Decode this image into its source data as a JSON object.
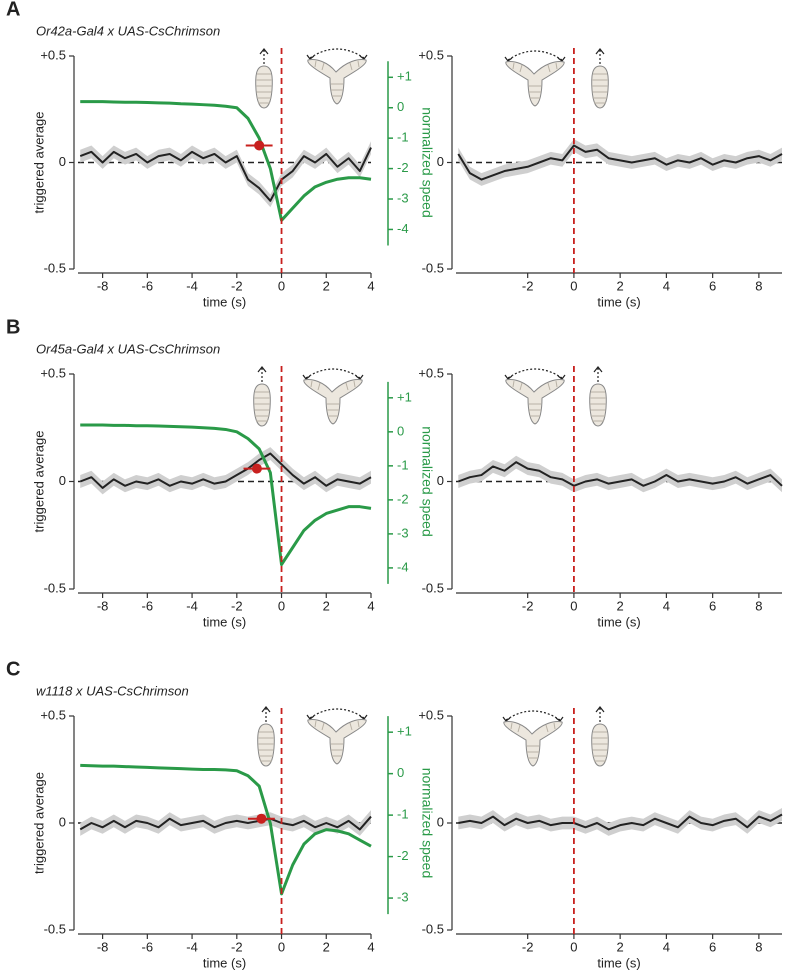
{
  "chart_data": [
    {
      "type": "line",
      "label": "A",
      "title": "Or42a-Gal4 x UAS-CsChrimson",
      "x_label": "time (s)",
      "y_label": "triggered average",
      "y2_label": "normalized speed",
      "x": [
        -9,
        -8.5,
        -8,
        -7.5,
        -7,
        -6.5,
        -6,
        -5.5,
        -5,
        -4.5,
        -4,
        -3.5,
        -3,
        -2.5,
        -2,
        -1.5,
        -1,
        -0.5,
        0,
        0.5,
        1,
        1.5,
        2,
        2.5,
        3,
        3.5,
        4
      ],
      "series": [
        {
          "color": "#222222",
          "sem": 0.03,
          "values": [
            0.03,
            0.05,
            0.0,
            0.05,
            0.02,
            0.04,
            0.0,
            0.03,
            0.04,
            0.01,
            0.05,
            0.02,
            0.04,
            0.0,
            0.03,
            -0.08,
            -0.12,
            -0.18,
            -0.08,
            -0.04,
            0.03,
            0.0,
            0.04,
            -0.02,
            0.02,
            -0.04,
            0.07
          ]
        },
        {
          "color": "#2a9a48",
          "axis": "y2",
          "values": [
            0.2,
            0.2,
            0.2,
            0.19,
            0.18,
            0.18,
            0.17,
            0.16,
            0.15,
            0.13,
            0.12,
            0.1,
            0.08,
            0.05,
            0.0,
            -0.35,
            -1.0,
            -2.0,
            -3.7,
            -3.3,
            -2.9,
            -2.6,
            -2.45,
            -2.35,
            -2.3,
            -2.3,
            -2.35
          ]
        }
      ],
      "onset": {
        "x": -1.0,
        "y": 0.08,
        "xerr": 0.6,
        "color": "#c8201e"
      },
      "event_line": {
        "x": 0,
        "color": "#c8201e"
      },
      "hline": 0,
      "xlim": [
        -9.1,
        4
      ],
      "xticks": [
        -8,
        -6,
        -4,
        -2,
        0,
        2,
        4
      ],
      "ylim": [
        -0.5,
        0.5
      ],
      "yticks": [
        {
          "value": -0.5,
          "label": "-0.5"
        },
        0,
        {
          "value": 0.5,
          "label": "+0.5"
        }
      ],
      "y2lim": [
        -5.3,
        1.7
      ],
      "y2ticks": [
        {
          "value": 1,
          "label": "+1"
        },
        0,
        -1,
        -2,
        -3,
        -4
      ]
    },
    {
      "type": "line",
      "x_label": "time (s)",
      "x": [
        -5,
        -4.5,
        -4,
        -3.5,
        -3,
        -2.5,
        -2,
        -1.5,
        -1,
        -0.5,
        0,
        0.5,
        1,
        1.5,
        2,
        2.5,
        3,
        3.5,
        4,
        4.5,
        5,
        5.5,
        6,
        6.5,
        7,
        7.5,
        8,
        8.5,
        9
      ],
      "series": [
        {
          "color": "#222222",
          "sem": 0.03,
          "values": [
            0.04,
            -0.05,
            -0.08,
            -0.06,
            -0.04,
            -0.03,
            -0.02,
            0.0,
            0.02,
            0.01,
            0.08,
            0.05,
            0.06,
            0.02,
            0.01,
            0.0,
            0.01,
            0.02,
            -0.01,
            0.01,
            0.0,
            0.02,
            -0.01,
            0.01,
            0.0,
            0.02,
            0.03,
            0.01,
            0.04
          ]
        }
      ],
      "event_line": {
        "x": 0,
        "color": "#c8201e"
      },
      "hline": 0,
      "xlim": [
        -5.1,
        9
      ],
      "xticks": [
        -2,
        0,
        2,
        4,
        6,
        8
      ],
      "ylim": [
        -0.5,
        0.5
      ],
      "yticks": [
        {
          "value": -0.5,
          "label": "-0.5"
        },
        0,
        {
          "value": 0.5,
          "label": "+0.5"
        }
      ]
    },
    {
      "type": "line",
      "label": "B",
      "title": "Or45a-Gal4 x UAS-CsChrimson",
      "x_label": "time (s)",
      "y_label": "triggered average",
      "y2_label": "normalized speed",
      "x": [
        -9,
        -8.5,
        -8,
        -7.5,
        -7,
        -6.5,
        -6,
        -5.5,
        -5,
        -4.5,
        -4,
        -3.5,
        -3,
        -2.5,
        -2,
        -1.5,
        -1,
        -0.5,
        0,
        0.5,
        1,
        1.5,
        2,
        2.5,
        3,
        3.5,
        4
      ],
      "series": [
        {
          "color": "#222222",
          "sem": 0.03,
          "values": [
            0.0,
            0.02,
            -0.03,
            0.01,
            -0.02,
            0.0,
            -0.01,
            0.01,
            -0.02,
            0.0,
            -0.01,
            0.01,
            -0.01,
            0.0,
            0.03,
            0.06,
            0.1,
            0.13,
            0.08,
            0.03,
            -0.01,
            0.02,
            -0.02,
            0.01,
            0.0,
            -0.01,
            0.02
          ]
        },
        {
          "color": "#2a9a48",
          "axis": "y2",
          "values": [
            0.2,
            0.2,
            0.2,
            0.19,
            0.19,
            0.18,
            0.18,
            0.17,
            0.16,
            0.15,
            0.14,
            0.12,
            0.1,
            0.07,
            0.0,
            -0.2,
            -0.5,
            -1.2,
            -3.9,
            -3.4,
            -2.9,
            -2.6,
            -2.4,
            -2.3,
            -2.2,
            -2.2,
            -2.25
          ]
        }
      ],
      "onset": {
        "x": -1.1,
        "y": 0.06,
        "xerr": 0.6,
        "color": "#c8201e"
      },
      "event_line": {
        "x": 0,
        "color": "#c8201e"
      },
      "hline": 0,
      "xlim": [
        -9.1,
        4
      ],
      "xticks": [
        -8,
        -6,
        -4,
        -2,
        0,
        2,
        4
      ],
      "ylim": [
        -0.5,
        0.5
      ],
      "yticks": [
        {
          "value": -0.5,
          "label": "-0.5"
        },
        0,
        {
          "value": 0.5,
          "label": "+0.5"
        }
      ],
      "y2lim": [
        -4.62,
        1.7
      ],
      "y2ticks": [
        {
          "value": 1,
          "label": "+1"
        },
        0,
        -1,
        -2,
        -3,
        -4
      ]
    },
    {
      "type": "line",
      "x_label": "time (s)",
      "x": [
        -5,
        -4.5,
        -4,
        -3.5,
        -3,
        -2.5,
        -2,
        -1.5,
        -1,
        -0.5,
        0,
        0.5,
        1,
        1.5,
        2,
        2.5,
        3,
        3.5,
        4,
        4.5,
        5,
        5.5,
        6,
        6.5,
        7,
        7.5,
        8,
        8.5,
        9
      ],
      "series": [
        {
          "color": "#222222",
          "sem": 0.03,
          "values": [
            0.0,
            0.02,
            0.03,
            0.07,
            0.05,
            0.09,
            0.06,
            0.05,
            0.02,
            0.01,
            -0.02,
            0.0,
            0.01,
            -0.01,
            0.0,
            0.01,
            -0.02,
            0.0,
            0.03,
            0.0,
            0.01,
            0.0,
            -0.01,
            0.0,
            0.02,
            -0.01,
            0.01,
            0.03,
            -0.02
          ]
        }
      ],
      "event_line": {
        "x": 0,
        "color": "#c8201e"
      },
      "hline": 0,
      "xlim": [
        -5.1,
        9
      ],
      "xticks": [
        -2,
        0,
        2,
        4,
        6,
        8
      ],
      "ylim": [
        -0.5,
        0.5
      ],
      "yticks": [
        {
          "value": -0.5,
          "label": "-0.5"
        },
        0,
        {
          "value": 0.5,
          "label": "+0.5"
        }
      ]
    },
    {
      "type": "line",
      "label": "C",
      "title": "w1118 x UAS-CsChrimson",
      "x_label": "time (s)",
      "y_label": "triggered average",
      "y2_label": "normalized speed",
      "x": [
        -9,
        -8.5,
        -8,
        -7.5,
        -7,
        -6.5,
        -6,
        -5.5,
        -5,
        -4.5,
        -4,
        -3.5,
        -3,
        -2.5,
        -2,
        -1.5,
        -1,
        -0.5,
        0,
        0.5,
        1,
        1.5,
        2,
        2.5,
        3,
        3.5,
        4
      ],
      "series": [
        {
          "color": "#222222",
          "sem": 0.03,
          "values": [
            -0.03,
            0.0,
            -0.02,
            0.01,
            -0.02,
            0.01,
            0.0,
            -0.02,
            0.02,
            -0.01,
            0.0,
            0.01,
            -0.02,
            0.0,
            0.01,
            0.0,
            0.01,
            0.02,
            0.0,
            -0.01,
            0.01,
            -0.02,
            0.0,
            -0.02,
            0.01,
            -0.03,
            0.03
          ]
        },
        {
          "color": "#2a9a48",
          "axis": "y2",
          "values": [
            0.2,
            0.19,
            0.18,
            0.18,
            0.17,
            0.16,
            0.15,
            0.14,
            0.13,
            0.12,
            0.11,
            0.1,
            0.1,
            0.09,
            0.07,
            -0.05,
            -0.3,
            -1.2,
            -2.9,
            -2.2,
            -1.7,
            -1.45,
            -1.35,
            -1.38,
            -1.45,
            -1.6,
            -1.75
          ]
        }
      ],
      "onset": {
        "x": -0.9,
        "y": 0.02,
        "xerr": 0.6,
        "color": "#c8201e"
      },
      "event_line": {
        "x": 0,
        "color": "#c8201e"
      },
      "hline": 0,
      "xlim": [
        -9.1,
        4
      ],
      "xticks": [
        -8,
        -6,
        -4,
        -2,
        0,
        2,
        4
      ],
      "ylim": [
        -0.5,
        0.5
      ],
      "yticks": [
        {
          "value": -0.5,
          "label": "-0.5"
        },
        0,
        {
          "value": 0.5,
          "label": "+0.5"
        }
      ],
      "y2lim": [
        -3.77,
        1.39
      ],
      "y2ticks": [
        {
          "value": 1,
          "label": "+1"
        },
        0,
        -1,
        -2,
        -3
      ]
    },
    {
      "type": "line",
      "x_label": "time (s)",
      "x": [
        -5,
        -4.5,
        -4,
        -3.5,
        -3,
        -2.5,
        -2,
        -1.5,
        -1,
        -0.5,
        0,
        0.5,
        1,
        1.5,
        2,
        2.5,
        3,
        3.5,
        4,
        4.5,
        5,
        5.5,
        6,
        6.5,
        7,
        7.5,
        8,
        8.5,
        9
      ],
      "series": [
        {
          "color": "#222222",
          "sem": 0.03,
          "values": [
            0.0,
            0.01,
            0.0,
            0.03,
            -0.01,
            0.02,
            0.0,
            0.01,
            -0.01,
            0.0,
            0.0,
            -0.02,
            0.0,
            -0.03,
            -0.01,
            0.0,
            -0.01,
            0.02,
            0.0,
            -0.02,
            0.03,
            0.0,
            -0.01,
            0.01,
            0.02,
            -0.02,
            0.03,
            0.01,
            0.04
          ]
        }
      ],
      "event_line": {
        "x": 0,
        "color": "#c8201e"
      },
      "hline": 0,
      "xlim": [
        -5.1,
        9
      ],
      "xticks": [
        -2,
        0,
        2,
        4,
        6,
        8
      ],
      "ylim": [
        -0.5,
        0.5
      ],
      "yticks": [
        {
          "value": -0.5,
          "label": "-0.5"
        },
        0,
        {
          "value": 0.5,
          "label": "+0.5"
        }
      ]
    }
  ]
}
